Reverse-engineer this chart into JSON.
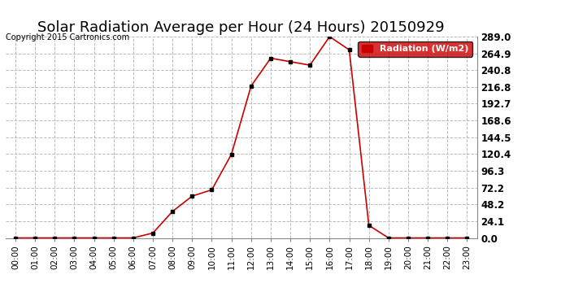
{
  "title": "Solar Radiation Average per Hour (24 Hours) 20150929",
  "copyright": "Copyright 2015 Cartronics.com",
  "legend_label": "Radiation (W/m2)",
  "hours": [
    0,
    1,
    2,
    3,
    4,
    5,
    6,
    7,
    8,
    9,
    10,
    11,
    12,
    13,
    14,
    15,
    16,
    17,
    18,
    19,
    20,
    21,
    22,
    23
  ],
  "x_labels": [
    "00:00",
    "01:00",
    "02:00",
    "03:00",
    "04:00",
    "05:00",
    "06:00",
    "07:00",
    "08:00",
    "09:00",
    "10:00",
    "11:00",
    "12:00",
    "13:00",
    "14:00",
    "15:00",
    "16:00",
    "17:00",
    "18:00",
    "19:00",
    "20:00",
    "21:00",
    "22:00",
    "23:00"
  ],
  "values": [
    0.0,
    0.0,
    0.0,
    0.0,
    0.0,
    0.0,
    0.0,
    7.0,
    38.0,
    60.0,
    69.0,
    120.0,
    218.0,
    258.0,
    253.0,
    248.0,
    289.0,
    270.0,
    18.0,
    0.0,
    0.0,
    0.0,
    0.0,
    0.0
  ],
  "line_color": "#cc0000",
  "marker_color": "#000000",
  "grid_color": "#bbbbbb",
  "background_color": "#ffffff",
  "y_ticks": [
    0.0,
    24.1,
    48.2,
    72.2,
    96.3,
    120.4,
    144.5,
    168.6,
    192.7,
    216.8,
    240.8,
    264.9,
    289.0
  ],
  "ylim": [
    0.0,
    289.0
  ],
  "title_fontsize": 13,
  "legend_bg": "#cc0000",
  "legend_text_color": "#ffffff"
}
